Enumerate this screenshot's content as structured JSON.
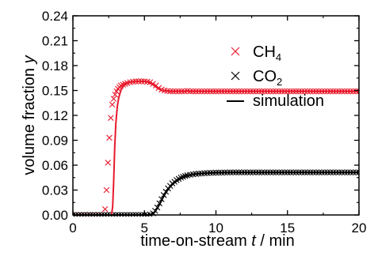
{
  "chart_data": {
    "type": "scatter",
    "xlabel_parts": [
      {
        "text": "time-on-stream ",
        "italic": false
      },
      {
        "text": "t",
        "italic": true
      },
      {
        "text": " / min",
        "italic": false
      }
    ],
    "ylabel_parts": [
      {
        "text": "volume fraction ",
        "italic": false
      },
      {
        "text": "y",
        "italic": true
      }
    ],
    "xlim": [
      0,
      20
    ],
    "ylim": [
      0,
      0.24
    ],
    "xticks": [
      "0",
      "5",
      "10",
      "15",
      "20"
    ],
    "yticks": [
      "0.00",
      "0.03",
      "0.06",
      "0.09",
      "0.12",
      "0.15",
      "0.18",
      "0.21",
      "0.24"
    ],
    "grid": false,
    "legend_position": "top-right",
    "legend": [
      {
        "label": "CH",
        "subscript": "4",
        "marker": "x",
        "color": "#e8192c"
      },
      {
        "label": "CO",
        "subscript": "2",
        "marker": "x",
        "color": "#000000"
      },
      {
        "label": "simulation",
        "subscript": "",
        "marker": "line",
        "color": "#000000"
      }
    ],
    "series": [
      {
        "name": "CH4",
        "kind": "markers",
        "color": "#e8192c",
        "points": [
          [
            0.0,
            0.0
          ],
          [
            0.2,
            0.0
          ],
          [
            0.4,
            0.0
          ],
          [
            0.6,
            0.0
          ],
          [
            0.8,
            0.0
          ],
          [
            1.0,
            0.0
          ],
          [
            1.2,
            0.0
          ],
          [
            1.4,
            0.0
          ],
          [
            1.6,
            0.0
          ],
          [
            1.8,
            0.0
          ],
          [
            2.0,
            0.0
          ],
          [
            2.25,
            0.007
          ],
          [
            2.35,
            0.03
          ],
          [
            2.45,
            0.063
          ],
          [
            2.55,
            0.093
          ],
          [
            2.65,
            0.117
          ],
          [
            2.75,
            0.133
          ],
          [
            2.85,
            0.14
          ],
          [
            2.95,
            0.145
          ],
          [
            3.05,
            0.149
          ],
          [
            3.15,
            0.152
          ],
          [
            3.25,
            0.154
          ],
          [
            3.35,
            0.156
          ],
          [
            3.5,
            0.157
          ],
          [
            3.65,
            0.158
          ],
          [
            3.8,
            0.159
          ],
          [
            4.0,
            0.16
          ],
          [
            4.2,
            0.1605
          ],
          [
            4.4,
            0.161
          ],
          [
            4.6,
            0.161
          ],
          [
            4.8,
            0.161
          ],
          [
            5.0,
            0.161
          ],
          [
            5.2,
            0.1605
          ],
          [
            5.4,
            0.16
          ],
          [
            5.6,
            0.158
          ],
          [
            5.8,
            0.156
          ],
          [
            6.0,
            0.153
          ],
          [
            6.2,
            0.151
          ],
          [
            6.4,
            0.15
          ],
          [
            6.6,
            0.1495
          ],
          [
            6.8,
            0.149
          ],
          [
            7.0,
            0.149
          ],
          [
            7.2,
            0.149
          ],
          [
            7.4,
            0.149
          ],
          [
            7.6,
            0.149
          ],
          [
            7.8,
            0.149
          ],
          [
            8.0,
            0.1495
          ],
          [
            8.2,
            0.149
          ],
          [
            8.4,
            0.149
          ],
          [
            8.6,
            0.149
          ],
          [
            8.8,
            0.149
          ],
          [
            9.0,
            0.149
          ],
          [
            9.2,
            0.149
          ],
          [
            9.4,
            0.149
          ],
          [
            9.6,
            0.149
          ],
          [
            9.8,
            0.149
          ],
          [
            10.0,
            0.149
          ],
          [
            10.2,
            0.149
          ],
          [
            10.4,
            0.149
          ],
          [
            10.6,
            0.149
          ],
          [
            10.8,
            0.149
          ],
          [
            11.0,
            0.149
          ],
          [
            11.2,
            0.149
          ],
          [
            11.4,
            0.149
          ],
          [
            11.6,
            0.149
          ],
          [
            11.8,
            0.149
          ],
          [
            12.0,
            0.149
          ],
          [
            12.2,
            0.149
          ],
          [
            12.4,
            0.149
          ],
          [
            12.6,
            0.149
          ],
          [
            12.8,
            0.149
          ],
          [
            13.0,
            0.149
          ],
          [
            13.2,
            0.149
          ],
          [
            13.4,
            0.149
          ],
          [
            13.6,
            0.149
          ],
          [
            13.8,
            0.149
          ],
          [
            14.0,
            0.149
          ],
          [
            14.2,
            0.149
          ],
          [
            14.4,
            0.149
          ],
          [
            14.6,
            0.149
          ],
          [
            14.8,
            0.149
          ],
          [
            15.0,
            0.149
          ],
          [
            15.2,
            0.149
          ],
          [
            15.4,
            0.149
          ],
          [
            15.6,
            0.149
          ],
          [
            15.8,
            0.149
          ],
          [
            16.0,
            0.149
          ],
          [
            16.2,
            0.149
          ],
          [
            16.4,
            0.149
          ],
          [
            16.6,
            0.149
          ],
          [
            16.8,
            0.149
          ],
          [
            17.0,
            0.149
          ],
          [
            17.2,
            0.149
          ],
          [
            17.4,
            0.149
          ],
          [
            17.6,
            0.149
          ],
          [
            17.8,
            0.149
          ],
          [
            18.0,
            0.149
          ],
          [
            18.2,
            0.149
          ],
          [
            18.4,
            0.149
          ],
          [
            18.6,
            0.149
          ],
          [
            18.8,
            0.149
          ],
          [
            19.0,
            0.149
          ],
          [
            19.2,
            0.149
          ],
          [
            19.4,
            0.149
          ],
          [
            19.6,
            0.149
          ],
          [
            19.8,
            0.149
          ],
          [
            20.0,
            0.149
          ]
        ]
      },
      {
        "name": "CO2",
        "kind": "markers",
        "color": "#000000",
        "points": [
          [
            0.0,
            0.0
          ],
          [
            0.2,
            0.0
          ],
          [
            0.4,
            0.0
          ],
          [
            0.6,
            0.0
          ],
          [
            0.8,
            0.0
          ],
          [
            1.0,
            0.0
          ],
          [
            1.2,
            0.0
          ],
          [
            1.4,
            0.0
          ],
          [
            1.6,
            0.0
          ],
          [
            1.8,
            0.0
          ],
          [
            2.0,
            0.0
          ],
          [
            2.2,
            0.0
          ],
          [
            2.4,
            0.0
          ],
          [
            2.6,
            0.0
          ],
          [
            2.8,
            0.0
          ],
          [
            3.0,
            0.0
          ],
          [
            3.2,
            0.0
          ],
          [
            3.4,
            0.0
          ],
          [
            3.6,
            0.0
          ],
          [
            3.8,
            0.0
          ],
          [
            4.0,
            0.0
          ],
          [
            4.2,
            0.0
          ],
          [
            4.4,
            0.0
          ],
          [
            4.6,
            0.0
          ],
          [
            4.8,
            0.0
          ],
          [
            5.0,
            0.0
          ],
          [
            5.2,
            0.0
          ],
          [
            5.4,
            0.0005
          ],
          [
            5.6,
            0.002
          ],
          [
            5.75,
            0.005
          ],
          [
            5.9,
            0.009
          ],
          [
            6.05,
            0.014
          ],
          [
            6.2,
            0.019
          ],
          [
            6.35,
            0.024
          ],
          [
            6.5,
            0.028
          ],
          [
            6.65,
            0.032
          ],
          [
            6.8,
            0.035
          ],
          [
            6.95,
            0.038
          ],
          [
            7.1,
            0.04
          ],
          [
            7.25,
            0.042
          ],
          [
            7.4,
            0.0435
          ],
          [
            7.55,
            0.045
          ],
          [
            7.7,
            0.046
          ],
          [
            7.85,
            0.047
          ],
          [
            8.0,
            0.0478
          ],
          [
            8.2,
            0.0485
          ],
          [
            8.4,
            0.049
          ],
          [
            8.6,
            0.0495
          ],
          [
            8.8,
            0.0498
          ],
          [
            9.0,
            0.05
          ],
          [
            9.2,
            0.0503
          ],
          [
            9.4,
            0.0505
          ],
          [
            9.6,
            0.0507
          ],
          [
            9.8,
            0.0508
          ],
          [
            10.0,
            0.051
          ],
          [
            10.2,
            0.051
          ],
          [
            10.4,
            0.051
          ],
          [
            10.6,
            0.0512
          ],
          [
            10.8,
            0.0512
          ],
          [
            11.0,
            0.0513
          ],
          [
            11.2,
            0.0513
          ],
          [
            11.4,
            0.0513
          ],
          [
            11.6,
            0.0513
          ],
          [
            11.8,
            0.0513
          ],
          [
            12.0,
            0.0513
          ],
          [
            12.2,
            0.0513
          ],
          [
            12.4,
            0.0513
          ],
          [
            12.6,
            0.0513
          ],
          [
            12.8,
            0.0513
          ],
          [
            13.0,
            0.0513
          ],
          [
            13.2,
            0.0513
          ],
          [
            13.4,
            0.0513
          ],
          [
            13.6,
            0.0513
          ],
          [
            13.8,
            0.0513
          ],
          [
            14.0,
            0.0513
          ],
          [
            14.2,
            0.0513
          ],
          [
            14.4,
            0.0513
          ],
          [
            14.6,
            0.0513
          ],
          [
            14.8,
            0.0513
          ],
          [
            15.0,
            0.0513
          ],
          [
            15.2,
            0.0513
          ],
          [
            15.4,
            0.0513
          ],
          [
            15.6,
            0.0513
          ],
          [
            15.8,
            0.0513
          ],
          [
            16.0,
            0.0513
          ],
          [
            16.2,
            0.0513
          ],
          [
            16.4,
            0.0513
          ],
          [
            16.6,
            0.0513
          ],
          [
            16.8,
            0.0513
          ],
          [
            17.0,
            0.0513
          ],
          [
            17.2,
            0.0513
          ],
          [
            17.4,
            0.0513
          ],
          [
            17.6,
            0.0513
          ],
          [
            17.8,
            0.0513
          ],
          [
            18.0,
            0.0513
          ],
          [
            18.2,
            0.0513
          ],
          [
            18.4,
            0.0513
          ],
          [
            18.6,
            0.0513
          ],
          [
            18.8,
            0.0513
          ],
          [
            19.0,
            0.0513
          ],
          [
            19.2,
            0.0513
          ],
          [
            19.4,
            0.0513
          ],
          [
            19.6,
            0.0513
          ],
          [
            19.8,
            0.0513
          ],
          [
            20.0,
            0.0513
          ]
        ]
      },
      {
        "name": "simulation CH4",
        "kind": "line",
        "color": "#e8192c",
        "points": [
          [
            0.0,
            0.0
          ],
          [
            2.7,
            0.0
          ],
          [
            2.78,
            0.01
          ],
          [
            2.85,
            0.04
          ],
          [
            2.92,
            0.08
          ],
          [
            3.0,
            0.11
          ],
          [
            3.1,
            0.13
          ],
          [
            3.2,
            0.141
          ],
          [
            3.35,
            0.15
          ],
          [
            3.5,
            0.155
          ],
          [
            3.7,
            0.158
          ],
          [
            4.0,
            0.16
          ],
          [
            4.5,
            0.161
          ],
          [
            5.0,
            0.161
          ],
          [
            5.3,
            0.16
          ],
          [
            5.6,
            0.157
          ],
          [
            5.9,
            0.153
          ],
          [
            6.2,
            0.15
          ],
          [
            6.5,
            0.1495
          ],
          [
            7.0,
            0.149
          ],
          [
            8.0,
            0.1493
          ],
          [
            9.0,
            0.149
          ],
          [
            10.0,
            0.149
          ],
          [
            12.0,
            0.149
          ],
          [
            14.0,
            0.149
          ],
          [
            16.0,
            0.149
          ],
          [
            18.0,
            0.149
          ],
          [
            20.0,
            0.149
          ]
        ]
      },
      {
        "name": "simulation CO2",
        "kind": "line",
        "color": "#000000",
        "points": [
          [
            0.0,
            0.0
          ],
          [
            5.5,
            0.0
          ],
          [
            5.7,
            0.003
          ],
          [
            5.9,
            0.008
          ],
          [
            6.1,
            0.014
          ],
          [
            6.3,
            0.021
          ],
          [
            6.5,
            0.027
          ],
          [
            6.8,
            0.034
          ],
          [
            7.1,
            0.039
          ],
          [
            7.5,
            0.0435
          ],
          [
            8.0,
            0.047
          ],
          [
            8.5,
            0.049
          ],
          [
            9.0,
            0.05
          ],
          [
            10.0,
            0.051
          ],
          [
            11.0,
            0.0512
          ],
          [
            12.0,
            0.0513
          ],
          [
            14.0,
            0.0513
          ],
          [
            16.0,
            0.0513
          ],
          [
            18.0,
            0.0513
          ],
          [
            20.0,
            0.0513
          ]
        ]
      }
    ]
  }
}
